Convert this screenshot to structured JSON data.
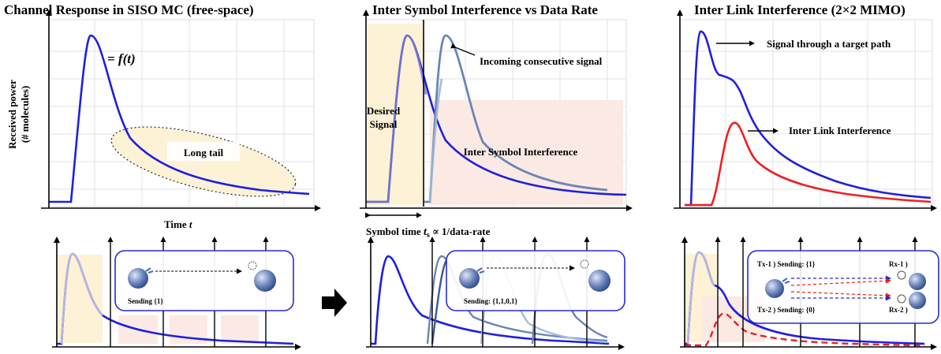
{
  "titles": {
    "left": "Channel Response in SISO MC (free-space)",
    "middle": "Inter Symbol Interference vs Data Rate",
    "right": "Inter Link Interference (2×2 MIMO)"
  },
  "left_panel": {
    "ylabel_line1": "Received power",
    "ylabel_line2": "(# molecules)",
    "xlabel": "Time ",
    "xlabel_var": "t",
    "formula": "= f(t)",
    "long_tail": "Long tail"
  },
  "middle_panel": {
    "incoming": "Incoming consecutive signal",
    "desired_1": "Desired",
    "desired_2": "Signal",
    "isi": "Inter Symbol Interference",
    "symbol_time_prefix": "Symbol time ",
    "symbol_time_var": "t",
    "symbol_time_sub": "s",
    "symbol_time_suffix": " ∝ 1/data-rate"
  },
  "right_panel": {
    "signal_target": "Signal through a target path",
    "inter_link": "Inter Link Interference"
  },
  "bottom": {
    "sending_left": "Sending {1}",
    "sending_mid": "Sending: {1,1,0,1}",
    "tx1": "Tx-1 ) Sending: {1}",
    "tx2": "Tx-2 ) Sending: {0}",
    "rx1": "Rx-1 )",
    "rx2": "Rx-2 )"
  },
  "colors": {
    "main_curve": "#1f1fe0",
    "faded_curve": "#7f7fcc",
    "steel_curve": "#6a86b4",
    "interference_curve": "#ee2020",
    "desired_highlight": "#fdf2d6",
    "isi_highlight": "#fbeae3",
    "inset_border": "#2a2ad0",
    "molecule": "#4a6aa8"
  }
}
